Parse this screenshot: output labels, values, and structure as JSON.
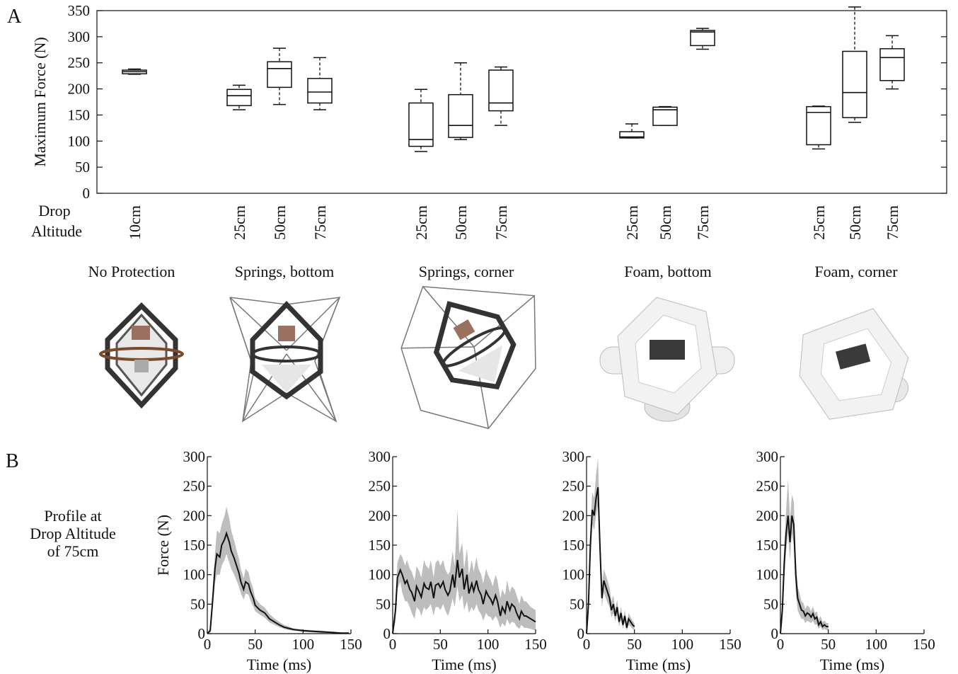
{
  "panel_labels": {
    "a": "A",
    "b": "B"
  },
  "chart_data": [
    {
      "type": "box",
      "ylabel": "Maximum Force (N)",
      "ylim": [
        0,
        350
      ],
      "yticks": [
        0,
        50,
        100,
        150,
        200,
        250,
        300,
        350
      ],
      "xaxis_title": [
        "Drop",
        "Altitude"
      ],
      "groups": [
        {
          "name": "No Protection",
          "boxes": [
            {
              "label": "10cm",
              "min": 228,
              "q1": 229,
              "median": 233,
              "q3": 236,
              "max": 238
            }
          ]
        },
        {
          "name": "Springs, bottom",
          "boxes": [
            {
              "label": "25cm",
              "min": 160,
              "q1": 168,
              "median": 187,
              "q3": 199,
              "max": 207
            },
            {
              "label": "50cm",
              "min": 170,
              "q1": 203,
              "median": 239,
              "q3": 252,
              "max": 278
            },
            {
              "label": "75cm",
              "min": 160,
              "q1": 173,
              "median": 194,
              "q3": 220,
              "max": 260
            }
          ]
        },
        {
          "name": "Springs, corner",
          "boxes": [
            {
              "label": "25cm",
              "min": 80,
              "q1": 90,
              "median": 103,
              "q3": 173,
              "max": 199
            },
            {
              "label": "50cm",
              "min": 103,
              "q1": 107,
              "median": 130,
              "q3": 189,
              "max": 250
            },
            {
              "label": "75cm",
              "min": 130,
              "q1": 158,
              "median": 173,
              "q3": 236,
              "max": 242
            }
          ]
        },
        {
          "name": "Foam, bottom",
          "boxes": [
            {
              "label": "25cm",
              "min": 106,
              "q1": 106,
              "median": 108,
              "q3": 118,
              "max": 133
            },
            {
              "label": "50cm",
              "min": 130,
              "q1": 130,
              "median": 160,
              "q3": 165,
              "max": 166
            },
            {
              "label": "75cm",
              "min": 276,
              "q1": 283,
              "median": 309,
              "q3": 312,
              "max": 316
            }
          ]
        },
        {
          "name": "Foam, corner",
          "boxes": [
            {
              "label": "25cm",
              "min": 85,
              "q1": 93,
              "median": 155,
              "q3": 166,
              "max": 167
            },
            {
              "label": "50cm",
              "min": 136,
              "q1": 145,
              "median": 193,
              "q3": 272,
              "max": 357
            },
            {
              "label": "75cm",
              "min": 200,
              "q1": 216,
              "median": 260,
              "q3": 277,
              "max": 302
            }
          ]
        }
      ]
    },
    {
      "type": "area",
      "ylabel": "Force (N)",
      "xlabel": "Time (ms)",
      "side_label": [
        "Profile at",
        "Drop Altitude",
        "of 75cm"
      ],
      "xlim": [
        0,
        150
      ],
      "ylim": [
        0,
        300
      ],
      "xticks": [
        0,
        50,
        100,
        150
      ],
      "yticks": [
        0,
        50,
        100,
        150,
        200,
        250,
        300
      ],
      "panels": [
        {
          "t": [
            0,
            3,
            5,
            8,
            10,
            13,
            15,
            18,
            20,
            23,
            25,
            28,
            30,
            33,
            35,
            38,
            40,
            43,
            45,
            48,
            50,
            55,
            60,
            65,
            70,
            75,
            80,
            85,
            90,
            100,
            110,
            120,
            130,
            140,
            148
          ],
          "mean": [
            0,
            5,
            45,
            110,
            135,
            130,
            150,
            160,
            170,
            155,
            140,
            128,
            118,
            103,
            88,
            75,
            88,
            84,
            72,
            60,
            48,
            40,
            35,
            25,
            20,
            15,
            11,
            9,
            7,
            5,
            4,
            3,
            2,
            1,
            1
          ],
          "lower": [
            0,
            2,
            30,
            85,
            100,
            100,
            115,
            125,
            135,
            120,
            110,
            100,
            92,
            80,
            68,
            58,
            68,
            66,
            56,
            46,
            38,
            32,
            27,
            19,
            15,
            11,
            8,
            6,
            5,
            3,
            2,
            1,
            1,
            0,
            0
          ],
          "upper": [
            0,
            10,
            60,
            135,
            175,
            170,
            185,
            200,
            215,
            195,
            175,
            158,
            145,
            127,
            110,
            94,
            110,
            104,
            90,
            76,
            60,
            50,
            44,
            33,
            26,
            20,
            15,
            12,
            9,
            7,
            6,
            5,
            3,
            2,
            2
          ]
        },
        {
          "t": [
            0,
            3,
            5,
            8,
            10,
            13,
            15,
            18,
            20,
            23,
            25,
            28,
            30,
            33,
            35,
            38,
            40,
            43,
            45,
            48,
            50,
            53,
            55,
            58,
            60,
            63,
            65,
            68,
            70,
            73,
            75,
            78,
            80,
            83,
            85,
            88,
            90,
            93,
            95,
            98,
            100,
            103,
            105,
            108,
            110,
            113,
            115,
            118,
            120,
            123,
            125,
            128,
            130,
            133,
            135,
            138,
            140,
            145,
            150
          ],
          "mean": [
            0,
            40,
            95,
            108,
            100,
            85,
            90,
            75,
            70,
            55,
            80,
            70,
            62,
            85,
            78,
            75,
            88,
            60,
            82,
            85,
            78,
            88,
            75,
            65,
            72,
            100,
            78,
            125,
            95,
            110,
            75,
            100,
            68,
            85,
            72,
            90,
            75,
            65,
            50,
            72,
            65,
            58,
            50,
            65,
            55,
            30,
            45,
            35,
            55,
            40,
            50,
            45,
            35,
            25,
            38,
            30,
            30,
            25,
            20
          ],
          "lower": [
            0,
            20,
            75,
            88,
            70,
            55,
            55,
            45,
            35,
            25,
            45,
            40,
            30,
            45,
            40,
            45,
            50,
            30,
            45,
            45,
            40,
            50,
            40,
            30,
            40,
            60,
            45,
            80,
            55,
            65,
            40,
            55,
            35,
            45,
            38,
            50,
            40,
            32,
            22,
            35,
            30,
            28,
            22,
            30,
            25,
            10,
            18,
            12,
            25,
            15,
            20,
            18,
            12,
            8,
            15,
            10,
            10,
            8,
            5
          ],
          "upper": [
            0,
            60,
            120,
            135,
            130,
            115,
            125,
            110,
            105,
            90,
            115,
            105,
            95,
            125,
            115,
            110,
            125,
            95,
            120,
            125,
            115,
            125,
            110,
            100,
            105,
            140,
            115,
            210,
            135,
            155,
            110,
            145,
            100,
            125,
            105,
            130,
            110,
            100,
            85,
            110,
            100,
            90,
            80,
            100,
            90,
            60,
            75,
            65,
            90,
            70,
            80,
            75,
            65,
            50,
            65,
            55,
            55,
            45,
            40
          ]
        },
        {
          "t": [
            0,
            2,
            4,
            6,
            8,
            10,
            12,
            14,
            16,
            18,
            20,
            22,
            24,
            26,
            28,
            30,
            32,
            34,
            36,
            38,
            40,
            42,
            44,
            46,
            48,
            50
          ],
          "mean": [
            0,
            50,
            150,
            210,
            200,
            230,
            248,
            150,
            60,
            90,
            80,
            70,
            60,
            40,
            50,
            30,
            45,
            20,
            35,
            15,
            30,
            10,
            25,
            20,
            15,
            12
          ],
          "lower": [
            0,
            30,
            120,
            185,
            175,
            200,
            218,
            120,
            45,
            70,
            60,
            52,
            45,
            28,
            35,
            20,
            32,
            12,
            24,
            8,
            20,
            5,
            15,
            12,
            8,
            6
          ],
          "upper": [
            0,
            70,
            180,
            240,
            230,
            270,
            298,
            180,
            80,
            110,
            100,
            90,
            78,
            55,
            65,
            42,
            58,
            30,
            46,
            24,
            40,
            18,
            35,
            28,
            22,
            18
          ]
        },
        {
          "t": [
            0,
            2,
            4,
            6,
            8,
            10,
            12,
            14,
            16,
            18,
            20,
            22,
            24,
            26,
            28,
            30,
            32,
            34,
            36,
            38,
            40,
            42,
            44,
            46,
            48,
            50
          ],
          "mean": [
            0,
            40,
            120,
            170,
            200,
            155,
            200,
            185,
            100,
            60,
            50,
            40,
            38,
            30,
            35,
            33,
            28,
            34,
            25,
            28,
            15,
            20,
            12,
            15,
            12,
            12
          ],
          "lower": [
            0,
            20,
            90,
            140,
            170,
            125,
            170,
            150,
            70,
            40,
            32,
            25,
            25,
            18,
            22,
            20,
            18,
            22,
            15,
            16,
            8,
            12,
            6,
            8,
            6,
            6
          ],
          "upper": [
            0,
            60,
            150,
            210,
            262,
            195,
            235,
            225,
            130,
            80,
            68,
            55,
            52,
            42,
            48,
            45,
            38,
            46,
            35,
            38,
            24,
            30,
            20,
            22,
            18,
            18
          ]
        }
      ]
    }
  ]
}
